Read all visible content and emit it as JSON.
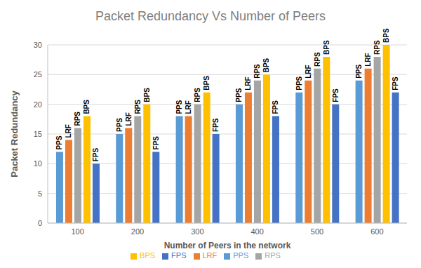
{
  "chart_data": {
    "type": "bar",
    "title": "Packet Redundancy Vs Number of Peers",
    "x_label": "Number of Peers in the network",
    "y_label": "Packet Redundancy",
    "categories": [
      "100",
      "200",
      "300",
      "400",
      "500",
      "600"
    ],
    "series": [
      {
        "name": "PPS",
        "color": "#5b9bd5",
        "values": [
          12,
          15,
          18,
          20,
          22,
          24
        ]
      },
      {
        "name": "LRF",
        "color": "#ed7d31",
        "values": [
          14,
          16,
          18,
          22,
          24,
          26
        ]
      },
      {
        "name": "RPS",
        "color": "#a5a5a5",
        "values": [
          16,
          18,
          20,
          24,
          26,
          28
        ]
      },
      {
        "name": "BPS",
        "color": "#ffc000",
        "values": [
          18,
          20,
          22,
          25,
          28,
          30
        ]
      },
      {
        "name": "FPS",
        "color": "#4472c4",
        "values": [
          10,
          12,
          15,
          18,
          20,
          22
        ]
      }
    ],
    "ylim": [
      0,
      30
    ],
    "yticks": [
      0,
      5,
      10,
      15,
      20,
      25,
      30
    ],
    "grid": true,
    "legend": "bottom"
  }
}
